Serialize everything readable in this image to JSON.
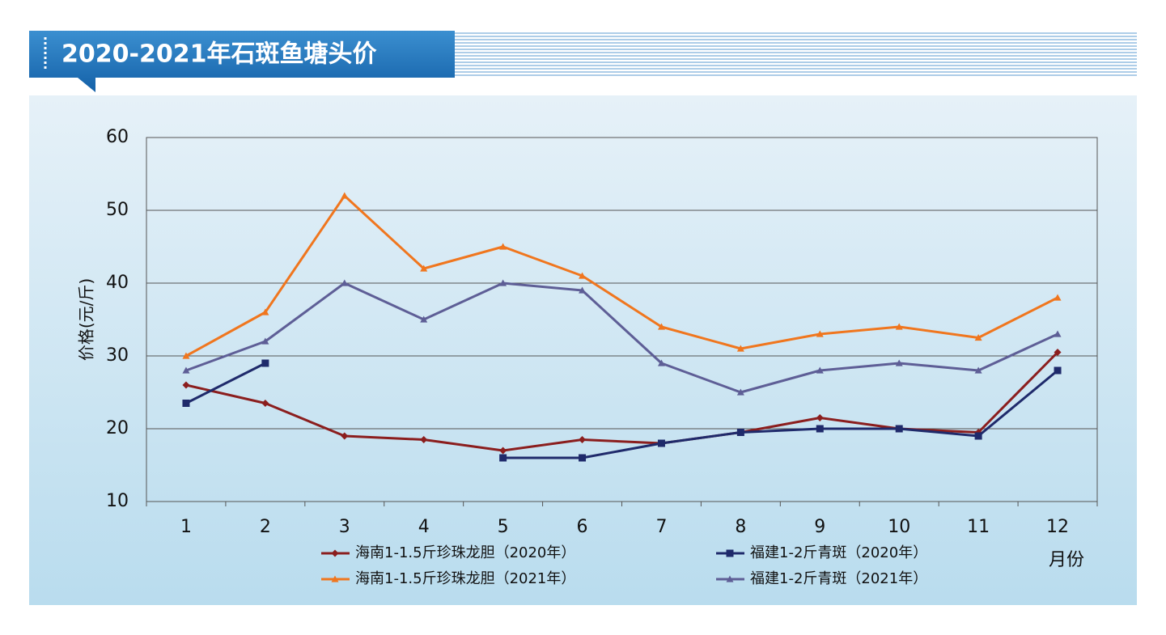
{
  "chart_data": {
    "type": "line",
    "title": "2020-2021年石斑鱼塘头价",
    "y_label": "价格(元/斤)",
    "x_label": "月份",
    "categories": [
      1,
      2,
      3,
      4,
      5,
      6,
      7,
      8,
      9,
      10,
      11,
      12
    ],
    "ylim": [
      10,
      60
    ],
    "yticks": [
      10,
      20,
      30,
      40,
      50,
      60
    ],
    "grid": true,
    "legend": "bottom",
    "series": [
      {
        "name": "海南1-1.5斤珍珠龙胆（2020年）",
        "color": "#8b1e1e",
        "marker": "diamond",
        "values": [
          26,
          23.5,
          19,
          18.5,
          17,
          18.5,
          18,
          19.5,
          21.5,
          20,
          19.5,
          30.5
        ]
      },
      {
        "name": "福建1-2斤青斑（2020年）",
        "color": "#1f2a6b",
        "marker": "square",
        "values": [
          23.5,
          29,
          null,
          null,
          16,
          16,
          18,
          19.5,
          20,
          20,
          19,
          28
        ]
      },
      {
        "name": "海南1-1.5斤珍珠龙胆（2021年）",
        "color": "#f0761e",
        "marker": "triangle",
        "values": [
          30,
          36,
          52,
          42,
          45,
          41,
          34,
          31,
          33,
          34,
          32.5,
          38
        ]
      },
      {
        "name": "福建1-2斤青斑（2021年）",
        "color": "#5e5e96",
        "marker": "triangle",
        "values": [
          28,
          32,
          40,
          35,
          40,
          39,
          29,
          25,
          28,
          29,
          28,
          33
        ]
      }
    ]
  }
}
